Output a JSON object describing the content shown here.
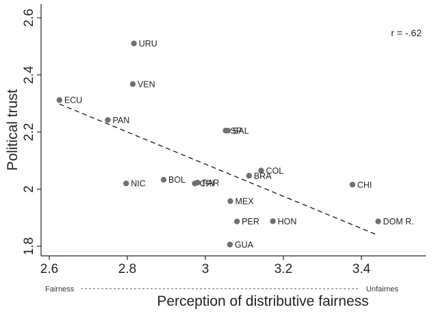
{
  "chart_data": {
    "type": "scatter",
    "title": "",
    "xlabel": "Perception of distributive fairness",
    "ylabel": "Political trust",
    "xlim": [
      2.6,
      3.6
    ],
    "ylim": [
      1.78,
      2.62
    ],
    "xticks": [
      2.6,
      2.8,
      3,
      3.2,
      3.4
    ],
    "xtick_labels": [
      "2.6",
      "2.8",
      "3",
      "3.2",
      "3.4"
    ],
    "yticks": [
      1.8,
      2,
      2.2,
      2.4,
      2.6
    ],
    "ytick_labels": [
      "1.8",
      "2",
      "2.2",
      "2.4",
      "2.6"
    ],
    "grid": false,
    "correlation_label": "r = -.62",
    "scale_left_label": "Fairness",
    "scale_right_label": "Unfairnes",
    "points": [
      {
        "label": "URU",
        "x": 2.817,
        "y": 2.51
      },
      {
        "label": "VEN",
        "x": 2.814,
        "y": 2.368
      },
      {
        "label": "ECU",
        "x": 2.626,
        "y": 2.312
      },
      {
        "label": "PAN",
        "x": 2.75,
        "y": 2.242
      },
      {
        "label": "SP",
        "x": 3.052,
        "y": 2.205
      },
      {
        "label": "SAL",
        "x": 3.058,
        "y": 2.205
      },
      {
        "label": "COL",
        "x": 3.143,
        "y": 2.065
      },
      {
        "label": "BRA",
        "x": 3.112,
        "y": 2.047
      },
      {
        "label": "BOL",
        "x": 2.893,
        "y": 2.033
      },
      {
        "label": "PAR",
        "x": 2.98,
        "y": 2.023
      },
      {
        "label": "CRI",
        "x": 2.973,
        "y": 2.02
      },
      {
        "label": "NIC",
        "x": 2.797,
        "y": 2.02
      },
      {
        "label": "CHI",
        "x": 3.377,
        "y": 2.016
      },
      {
        "label": "MEX",
        "x": 3.064,
        "y": 1.958
      },
      {
        "label": "PER",
        "x": 3.081,
        "y": 1.887
      },
      {
        "label": "HON",
        "x": 3.173,
        "y": 1.888
      },
      {
        "label": "DOM R.",
        "x": 3.443,
        "y": 1.887
      },
      {
        "label": "GUA",
        "x": 3.063,
        "y": 1.806
      }
    ],
    "fit_line": {
      "x": [
        2.626,
        3.44
      ],
      "y": [
        2.298,
        1.84
      ]
    }
  }
}
